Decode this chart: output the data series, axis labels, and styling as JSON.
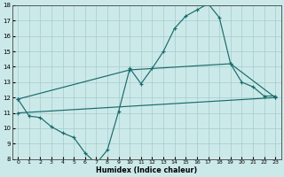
{
  "xlabel": "Humidex (Indice chaleur)",
  "xlim": [
    -0.5,
    23.5
  ],
  "ylim": [
    8,
    18
  ],
  "xticks": [
    0,
    1,
    2,
    3,
    4,
    5,
    6,
    7,
    8,
    9,
    10,
    11,
    12,
    13,
    14,
    15,
    16,
    17,
    18,
    19,
    20,
    21,
    22,
    23
  ],
  "yticks": [
    8,
    9,
    10,
    11,
    12,
    13,
    14,
    15,
    16,
    17,
    18
  ],
  "background_color": "#cce9e9",
  "grid_color": "#aad0d0",
  "line_color": "#1a6b6b",
  "line1_x": [
    0,
    1,
    2,
    3,
    4,
    5,
    6,
    7,
    8,
    9,
    10,
    11,
    12,
    13,
    14,
    15,
    16,
    17,
    18,
    19,
    20,
    21,
    22,
    23
  ],
  "line1_y": [
    11.9,
    10.8,
    10.7,
    10.1,
    9.7,
    9.4,
    8.4,
    7.7,
    8.6,
    11.1,
    13.9,
    12.9,
    13.9,
    15.0,
    16.5,
    17.3,
    17.7,
    18.1,
    17.2,
    14.2,
    13.0,
    12.7,
    12.1,
    12.1
  ],
  "line2_x": [
    0,
    10,
    19,
    23
  ],
  "line2_y": [
    11.9,
    13.8,
    14.2,
    12.0
  ],
  "line3_x": [
    0,
    23
  ],
  "line3_y": [
    11.0,
    12.0
  ]
}
